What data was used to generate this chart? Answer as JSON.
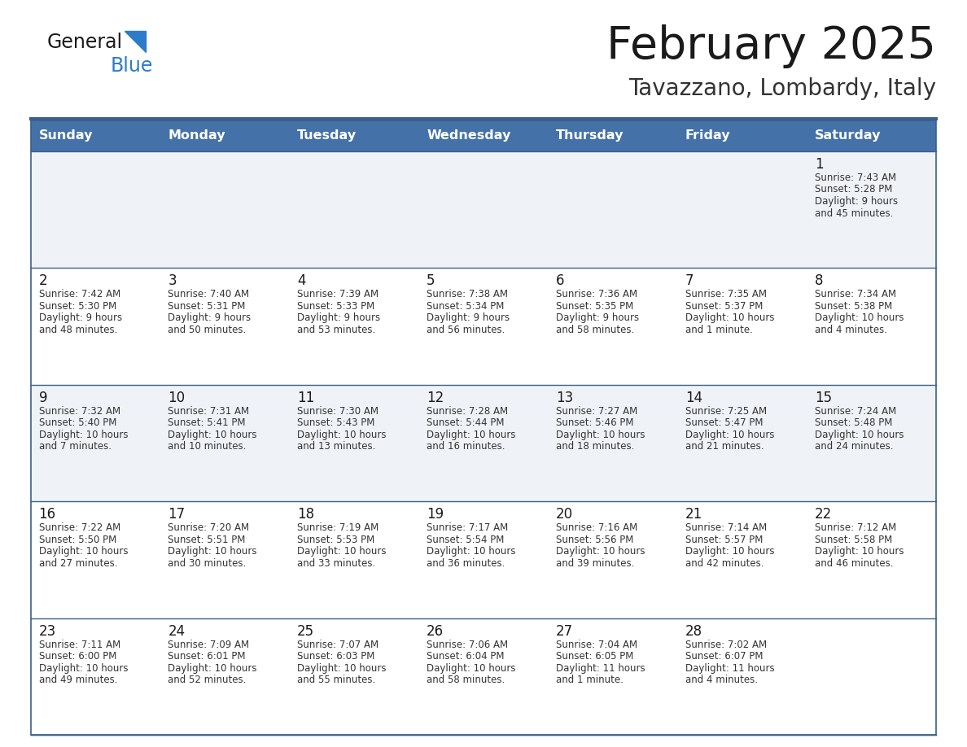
{
  "title": "February 2025",
  "subtitle": "Tavazzano, Lombardy, Italy",
  "days_of_week": [
    "Sunday",
    "Monday",
    "Tuesday",
    "Wednesday",
    "Thursday",
    "Friday",
    "Saturday"
  ],
  "header_bg": "#4472a8",
  "header_text": "#ffffff",
  "row_bg_odd": "#eff3f7",
  "row_bg_even": "#ffffff",
  "line_color": "#3a5f8a",
  "day_num_color": "#1a1a1a",
  "text_color": "#333333",
  "title_color": "#1a1a1a",
  "subtitle_color": "#333333",
  "logo_text_color": "#1a1a1a",
  "logo_blue_color": "#2d7cc9",
  "calendar": [
    [
      null,
      null,
      null,
      null,
      null,
      null,
      {
        "day": "1",
        "sunrise": "7:43 AM",
        "sunset": "5:28 PM",
        "daylight": "9 hours\nand 45 minutes."
      }
    ],
    [
      {
        "day": "2",
        "sunrise": "7:42 AM",
        "sunset": "5:30 PM",
        "daylight": "9 hours\nand 48 minutes."
      },
      {
        "day": "3",
        "sunrise": "7:40 AM",
        "sunset": "5:31 PM",
        "daylight": "9 hours\nand 50 minutes."
      },
      {
        "day": "4",
        "sunrise": "7:39 AM",
        "sunset": "5:33 PM",
        "daylight": "9 hours\nand 53 minutes."
      },
      {
        "day": "5",
        "sunrise": "7:38 AM",
        "sunset": "5:34 PM",
        "daylight": "9 hours\nand 56 minutes."
      },
      {
        "day": "6",
        "sunrise": "7:36 AM",
        "sunset": "5:35 PM",
        "daylight": "9 hours\nand 58 minutes."
      },
      {
        "day": "7",
        "sunrise": "7:35 AM",
        "sunset": "5:37 PM",
        "daylight": "10 hours\nand 1 minute."
      },
      {
        "day": "8",
        "sunrise": "7:34 AM",
        "sunset": "5:38 PM",
        "daylight": "10 hours\nand 4 minutes."
      }
    ],
    [
      {
        "day": "9",
        "sunrise": "7:32 AM",
        "sunset": "5:40 PM",
        "daylight": "10 hours\nand 7 minutes."
      },
      {
        "day": "10",
        "sunrise": "7:31 AM",
        "sunset": "5:41 PM",
        "daylight": "10 hours\nand 10 minutes."
      },
      {
        "day": "11",
        "sunrise": "7:30 AM",
        "sunset": "5:43 PM",
        "daylight": "10 hours\nand 13 minutes."
      },
      {
        "day": "12",
        "sunrise": "7:28 AM",
        "sunset": "5:44 PM",
        "daylight": "10 hours\nand 16 minutes."
      },
      {
        "day": "13",
        "sunrise": "7:27 AM",
        "sunset": "5:46 PM",
        "daylight": "10 hours\nand 18 minutes."
      },
      {
        "day": "14",
        "sunrise": "7:25 AM",
        "sunset": "5:47 PM",
        "daylight": "10 hours\nand 21 minutes."
      },
      {
        "day": "15",
        "sunrise": "7:24 AM",
        "sunset": "5:48 PM",
        "daylight": "10 hours\nand 24 minutes."
      }
    ],
    [
      {
        "day": "16",
        "sunrise": "7:22 AM",
        "sunset": "5:50 PM",
        "daylight": "10 hours\nand 27 minutes."
      },
      {
        "day": "17",
        "sunrise": "7:20 AM",
        "sunset": "5:51 PM",
        "daylight": "10 hours\nand 30 minutes."
      },
      {
        "day": "18",
        "sunrise": "7:19 AM",
        "sunset": "5:53 PM",
        "daylight": "10 hours\nand 33 minutes."
      },
      {
        "day": "19",
        "sunrise": "7:17 AM",
        "sunset": "5:54 PM",
        "daylight": "10 hours\nand 36 minutes."
      },
      {
        "day": "20",
        "sunrise": "7:16 AM",
        "sunset": "5:56 PM",
        "daylight": "10 hours\nand 39 minutes."
      },
      {
        "day": "21",
        "sunrise": "7:14 AM",
        "sunset": "5:57 PM",
        "daylight": "10 hours\nand 42 minutes."
      },
      {
        "day": "22",
        "sunrise": "7:12 AM",
        "sunset": "5:58 PM",
        "daylight": "10 hours\nand 46 minutes."
      }
    ],
    [
      {
        "day": "23",
        "sunrise": "7:11 AM",
        "sunset": "6:00 PM",
        "daylight": "10 hours\nand 49 minutes."
      },
      {
        "day": "24",
        "sunrise": "7:09 AM",
        "sunset": "6:01 PM",
        "daylight": "10 hours\nand 52 minutes."
      },
      {
        "day": "25",
        "sunrise": "7:07 AM",
        "sunset": "6:03 PM",
        "daylight": "10 hours\nand 55 minutes."
      },
      {
        "day": "26",
        "sunrise": "7:06 AM",
        "sunset": "6:04 PM",
        "daylight": "10 hours\nand 58 minutes."
      },
      {
        "day": "27",
        "sunrise": "7:04 AM",
        "sunset": "6:05 PM",
        "daylight": "11 hours\nand 1 minute."
      },
      {
        "day": "28",
        "sunrise": "7:02 AM",
        "sunset": "6:07 PM",
        "daylight": "11 hours\nand 4 minutes."
      },
      null
    ]
  ]
}
